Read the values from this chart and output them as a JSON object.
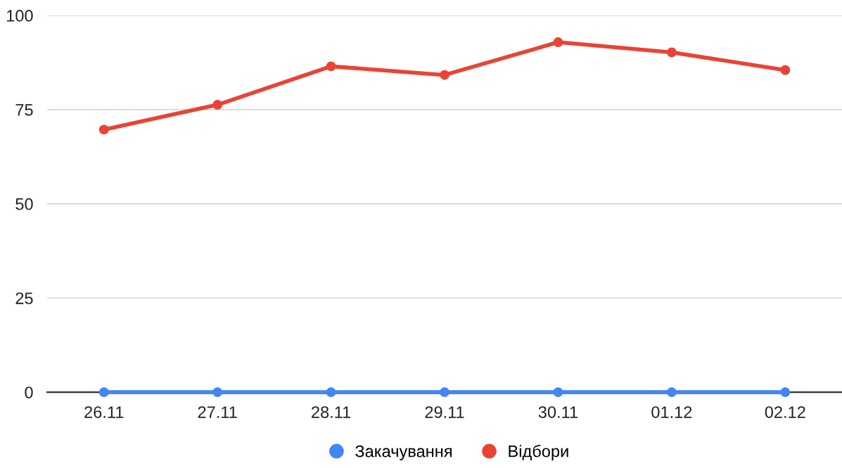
{
  "chart_data": {
    "type": "line",
    "categories": [
      "26.11",
      "27.11",
      "28.11",
      "29.11",
      "30.11",
      "01.12",
      "02.12"
    ],
    "series": [
      {
        "name": "Закачування",
        "color": "#4285f4",
        "values": [
          0,
          0,
          0,
          0,
          0,
          0,
          0
        ]
      },
      {
        "name": "Відбори",
        "color": "#ea4335",
        "values": [
          69.7,
          76.3,
          86.5,
          84.2,
          92.9,
          90.2,
          85.5
        ]
      }
    ],
    "ylim": [
      0,
      100
    ],
    "yticks": [
      0,
      25,
      50,
      75,
      100
    ],
    "grid": "y",
    "legend": "bottom",
    "marker": "circle",
    "line_style": "solid"
  }
}
